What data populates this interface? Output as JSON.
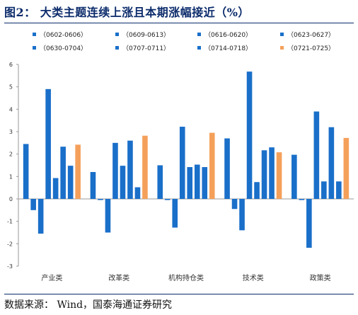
{
  "figure_title": "图2：  大类主题连续上涨且本期涨幅接近（%）",
  "source_note": "数据来源：  Wind，国泰海通证券研究",
  "chart_data": {
    "type": "bar",
    "categories": [
      "产业类",
      "改革类",
      "机构持仓类",
      "技术类",
      "政策类"
    ],
    "ylim": [
      -3,
      6
    ],
    "yticks": [
      -3,
      -2,
      -1,
      0,
      1,
      2,
      3,
      4,
      5,
      6
    ],
    "legend_position": "top",
    "grid": false,
    "colors": {
      "primary": "#1a6fc9",
      "highlight": "#f5a05a",
      "axis": "#999999"
    },
    "series": [
      {
        "name": "（0602-0606）",
        "values": [
          2.45,
          1.2,
          1.5,
          2.7,
          1.97
        ]
      },
      {
        "name": "（0609-0613）",
        "values": [
          -0.5,
          -0.05,
          -0.05,
          -0.45,
          -0.05
        ]
      },
      {
        "name": "（0616-0620）",
        "values": [
          -1.55,
          -1.5,
          -1.28,
          -1.4,
          -2.18
        ]
      },
      {
        "name": "（0623-0627）",
        "values": [
          4.9,
          2.5,
          3.22,
          5.68,
          3.9
        ]
      },
      {
        "name": "（0630-0704）",
        "values": [
          0.93,
          1.48,
          1.42,
          0.75,
          0.78
        ]
      },
      {
        "name": "（0707-0711）",
        "values": [
          2.33,
          2.6,
          1.53,
          2.17,
          3.2
        ]
      },
      {
        "name": "（0714-0718）",
        "values": [
          1.48,
          0.52,
          1.42,
          2.3,
          0.78
        ]
      },
      {
        "name": "（0721-0725）",
        "values": [
          2.42,
          2.82,
          2.95,
          2.08,
          2.72
        ]
      }
    ]
  }
}
